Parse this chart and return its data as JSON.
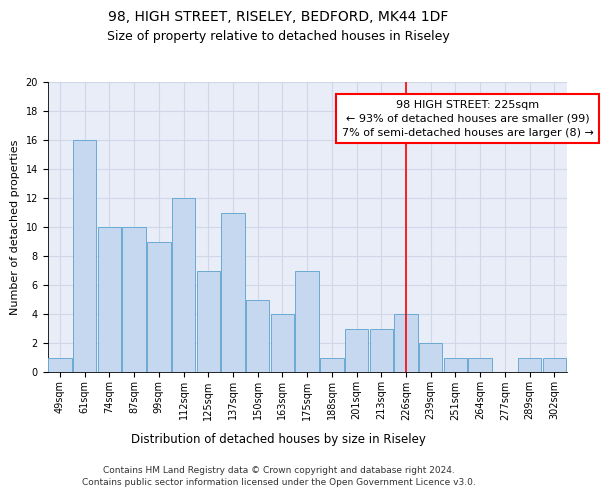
{
  "title1": "98, HIGH STREET, RISELEY, BEDFORD, MK44 1DF",
  "title2": "Size of property relative to detached houses in Riseley",
  "xlabel": "Distribution of detached houses by size in Riseley",
  "ylabel": "Number of detached properties",
  "categories": [
    "49sqm",
    "61sqm",
    "74sqm",
    "87sqm",
    "99sqm",
    "112sqm",
    "125sqm",
    "137sqm",
    "150sqm",
    "163sqm",
    "175sqm",
    "188sqm",
    "201sqm",
    "213sqm",
    "226sqm",
    "239sqm",
    "251sqm",
    "264sqm",
    "277sqm",
    "289sqm",
    "302sqm"
  ],
  "values": [
    1,
    16,
    10,
    10,
    9,
    12,
    7,
    11,
    5,
    4,
    7,
    1,
    3,
    3,
    4,
    2,
    1,
    1,
    0,
    1,
    1
  ],
  "bar_color": "#c5d8f0",
  "bar_edge_color": "#6aaad4",
  "red_line_index": 14,
  "annotation_line1": "98 HIGH STREET: 225sqm",
  "annotation_line2": "← 93% of detached houses are smaller (99)",
  "annotation_line3": "7% of semi-detached houses are larger (8) →",
  "ylim": [
    0,
    20
  ],
  "yticks": [
    0,
    2,
    4,
    6,
    8,
    10,
    12,
    14,
    16,
    18,
    20
  ],
  "grid_color": "#d0d8e8",
  "background_color": "#e8edf8",
  "footer": "Contains HM Land Registry data © Crown copyright and database right 2024.\nContains public sector information licensed under the Open Government Licence v3.0.",
  "title1_fontsize": 10,
  "title2_fontsize": 9,
  "xlabel_fontsize": 8.5,
  "ylabel_fontsize": 8,
  "annotation_fontsize": 8,
  "footer_fontsize": 6.5,
  "tick_fontsize": 7
}
